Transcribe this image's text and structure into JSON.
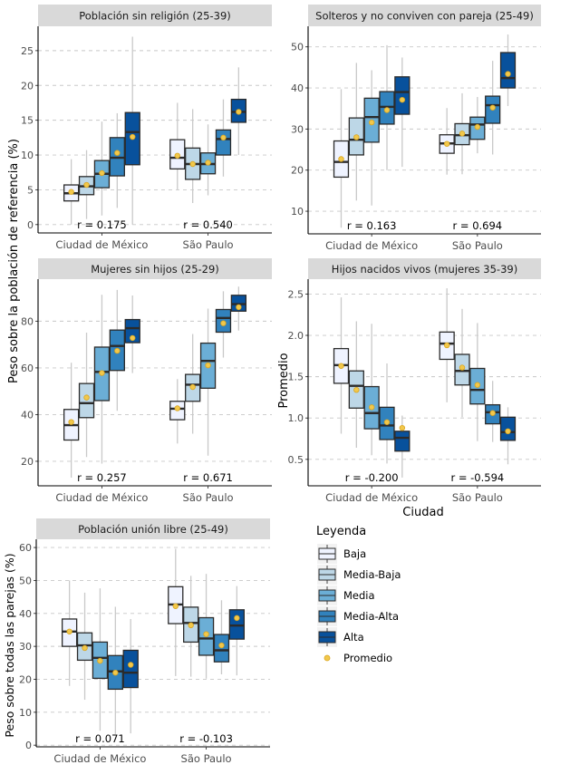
{
  "chart_data": {
    "type": "boxplot",
    "categories": [
      "Ciudad de México",
      "São Paulo"
    ],
    "groups": [
      "Baja",
      "Media-Baja",
      "Media",
      "Media-Alta",
      "Alta"
    ],
    "group_colors": [
      "#eff3ff",
      "#bdd7e7",
      "#6baed6",
      "#3182bd",
      "#08519c"
    ],
    "mean_color": "#f2c84b",
    "y_labels": {
      "left_top": "Peso sobre la población de referencia (%)",
      "right_middle": "Promedio",
      "left_bottom": "Peso sobre todas las parejas (%)"
    },
    "xlabel": "Ciudad",
    "legend": {
      "title": "Leyenda",
      "items": [
        "Baja",
        "Media-Baja",
        "Media",
        "Media-Alta",
        "Alta"
      ],
      "mean_label": "Promedio",
      "position": "bottom-right"
    },
    "panels": [
      {
        "title": "Población sin religión (25-39)",
        "ylim": [
          -1.2,
          28.5
        ],
        "yticks": [
          0,
          5,
          10,
          15,
          20,
          25
        ],
        "ytick_labels": [
          "0",
          "5",
          "10",
          "15",
          "20",
          "25"
        ],
        "r": [
          "r = 0.175",
          "r = 0.540"
        ],
        "boxes": [
          [
            {
              "min": 0.0,
              "q1": 3.4,
              "median": 4.5,
              "q3": 5.7,
              "max": 9.4,
              "mean": 4.7
            },
            {
              "min": 0.8,
              "q1": 4.3,
              "median": 5.5,
              "q3": 6.9,
              "max": 10.7,
              "mean": 5.7
            },
            {
              "min": 1.3,
              "q1": 5.3,
              "median": 7.3,
              "q3": 9.2,
              "max": 14.8,
              "mean": 7.4
            },
            {
              "min": 2.4,
              "q1": 7.0,
              "median": 9.6,
              "q3": 12.5,
              "max": 16.0,
              "mean": 10.3
            },
            {
              "min": 0.0,
              "q1": 8.6,
              "median": 13.3,
              "q3": 16.1,
              "max": 27.0,
              "mean": 12.6
            }
          ],
          [
            {
              "min": 5.0,
              "q1": 8.0,
              "median": 9.6,
              "q3": 12.2,
              "max": 17.5,
              "mean": 9.9
            },
            {
              "min": 3.1,
              "q1": 6.5,
              "median": 8.7,
              "q3": 11.0,
              "max": 16.6,
              "mean": 8.7
            },
            {
              "min": 4.2,
              "q1": 7.3,
              "median": 8.7,
              "q3": 10.3,
              "max": 14.4,
              "mean": 8.9
            },
            {
              "min": 6.9,
              "q1": 10.0,
              "median": 12.3,
              "q3": 13.6,
              "max": 18.0,
              "mean": 12.5
            },
            {
              "min": 10.0,
              "q1": 14.7,
              "median": 16.2,
              "q3": 18.0,
              "max": 22.6,
              "mean": 16.2
            }
          ]
        ]
      },
      {
        "title": "Solteros y no conviven con pareja (25-49)",
        "ylim": [
          4.5,
          55
        ],
        "yticks": [
          10,
          20,
          30,
          40,
          50
        ],
        "ytick_labels": [
          "10",
          "20",
          "30",
          "40",
          "50"
        ],
        "r": [
          "r = 0.163",
          "r = 0.694"
        ],
        "boxes": [
          [
            {
              "min": 6.0,
              "q1": 18.3,
              "median": 22.0,
              "q3": 27.1,
              "max": 39.7,
              "mean": 22.7
            },
            {
              "min": 12.6,
              "q1": 23.7,
              "median": 27.4,
              "q3": 32.7,
              "max": 46.1,
              "mean": 28.0
            },
            {
              "min": 11.4,
              "q1": 26.8,
              "median": 32.9,
              "q3": 37.5,
              "max": 44.3,
              "mean": 31.6
            },
            {
              "min": 20.0,
              "q1": 31.2,
              "median": 35.4,
              "q3": 39.1,
              "max": 50.4,
              "mean": 34.6
            },
            {
              "min": 20.8,
              "q1": 33.6,
              "median": 39.0,
              "q3": 42.7,
              "max": 47.4,
              "mean": 37.1
            }
          ],
          [
            {
              "min": 18.9,
              "q1": 24.1,
              "median": 26.5,
              "q3": 28.6,
              "max": 35.1,
              "mean": 26.4
            },
            {
              "min": 19.0,
              "q1": 26.2,
              "median": 28.5,
              "q3": 31.3,
              "max": 38.7,
              "mean": 28.9
            },
            {
              "min": 24.1,
              "q1": 27.5,
              "median": 31.1,
              "q3": 32.9,
              "max": 37.8,
              "mean": 30.5
            },
            {
              "min": 23.8,
              "q1": 31.4,
              "median": 35.8,
              "q3": 38.0,
              "max": 46.6,
              "mean": 35.2
            },
            {
              "min": 35.6,
              "q1": 40.0,
              "median": 42.4,
              "q3": 48.6,
              "max": 53.0,
              "mean": 43.4
            }
          ]
        ]
      },
      {
        "title": "Mujeres sin hijos (25-29)",
        "ylim": [
          9.5,
          98
        ],
        "yticks": [
          20,
          40,
          60,
          80
        ],
        "ytick_labels": [
          "20",
          "40",
          "60",
          "80"
        ],
        "r": [
          "r = 0.257",
          "r = 0.671"
        ],
        "boxes": [
          [
            {
              "min": 13.0,
              "q1": 29.1,
              "median": 35.5,
              "q3": 42.2,
              "max": 62.2,
              "mean": 36.8
            },
            {
              "min": 21.8,
              "q1": 38.7,
              "median": 44.9,
              "q3": 53.3,
              "max": 75.1,
              "mean": 47.3
            },
            {
              "min": 19.0,
              "q1": 46.0,
              "median": 58.3,
              "q3": 68.9,
              "max": 91.3,
              "mean": 57.8
            },
            {
              "min": 41.6,
              "q1": 58.9,
              "median": 69.4,
              "q3": 76.2,
              "max": 93.4,
              "mean": 67.3
            },
            {
              "min": 57.8,
              "q1": 70.8,
              "median": 77.0,
              "q3": 80.7,
              "max": 91.0,
              "mean": 72.8
            }
          ],
          [
            {
              "min": 27.6,
              "q1": 37.8,
              "median": 42.5,
              "q3": 45.7,
              "max": 55.2,
              "mean": 42.7
            },
            {
              "min": 31.8,
              "q1": 45.7,
              "median": 52.8,
              "q3": 57.2,
              "max": 74.5,
              "mean": 51.8
            },
            {
              "min": 22.4,
              "q1": 51.3,
              "median": 63.0,
              "q3": 70.6,
              "max": 85.4,
              "mean": 61.1
            },
            {
              "min": 64.4,
              "q1": 75.3,
              "median": 81.4,
              "q3": 85.0,
              "max": 92.8,
              "mean": 79.1
            },
            {
              "min": 76.0,
              "q1": 84.3,
              "median": 87.3,
              "q3": 91.1,
              "max": 94.8,
              "mean": 86.0
            }
          ]
        ]
      },
      {
        "title": "Hijos nacidos vivos (mujeres 35-39)",
        "ylim": [
          0.18,
          2.68
        ],
        "yticks": [
          0.5,
          1.0,
          1.5,
          2.0,
          2.5
        ],
        "ytick_labels": [
          "0.5",
          "1.0",
          "1.5",
          "2.0",
          "2.5"
        ],
        "r": [
          "r = -0.200",
          "r = -0.594"
        ],
        "boxes": [
          [
            {
              "min": 0.81,
              "q1": 1.42,
              "median": 1.64,
              "q3": 1.84,
              "max": 2.46,
              "mean": 1.63
            },
            {
              "min": 0.64,
              "q1": 1.12,
              "median": 1.39,
              "q3": 1.57,
              "max": 2.17,
              "mean": 1.34
            },
            {
              "min": 0.55,
              "q1": 0.87,
              "median": 1.06,
              "q3": 1.38,
              "max": 2.14,
              "mean": 1.13
            },
            {
              "min": 0.45,
              "q1": 0.74,
              "median": 0.91,
              "q3": 1.13,
              "max": 1.66,
              "mean": 0.95
            },
            {
              "min": 0.28,
              "q1": 0.6,
              "median": 0.76,
              "q3": 0.84,
              "max": 1.03,
              "mean": 0.88
            }
          ],
          [
            {
              "min": 1.19,
              "q1": 1.71,
              "median": 1.9,
              "q3": 2.04,
              "max": 2.57,
              "mean": 1.88
            },
            {
              "min": 1.01,
              "q1": 1.4,
              "median": 1.57,
              "q3": 1.77,
              "max": 2.32,
              "mean": 1.61
            },
            {
              "min": 0.72,
              "q1": 1.17,
              "median": 1.34,
              "q3": 1.6,
              "max": 2.15,
              "mean": 1.4
            },
            {
              "min": 0.71,
              "q1": 0.93,
              "median": 1.07,
              "q3": 1.16,
              "max": 1.45,
              "mean": 1.06
            },
            {
              "min": 0.44,
              "q1": 0.73,
              "median": 0.83,
              "q3": 1.01,
              "max": 1.13,
              "mean": 0.84
            }
          ]
        ]
      },
      {
        "title": "Población unión libre (25-49)",
        "ylim": [
          -0.5,
          62.5
        ],
        "yticks": [
          0,
          10,
          20,
          30,
          40,
          50,
          60
        ],
        "ytick_labels": [
          "0",
          "10",
          "20",
          "30",
          "40",
          "50",
          "60"
        ],
        "r": [
          "r = 0.071",
          "r = -0.103"
        ],
        "boxes": [
          [
            {
              "min": 18.0,
              "q1": 30.0,
              "median": 34.5,
              "q3": 38.3,
              "max": 50.0,
              "mean": 34.5
            },
            {
              "min": 13.8,
              "q1": 25.8,
              "median": 30.3,
              "q3": 34.1,
              "max": 46.3,
              "mean": 29.5
            },
            {
              "min": 4.4,
              "q1": 20.3,
              "median": 26.5,
              "q3": 31.3,
              "max": 47.6,
              "mean": 25.6
            },
            {
              "min": 3.4,
              "q1": 17.0,
              "median": 22.4,
              "q3": 27.2,
              "max": 42.0,
              "mean": 22.0
            },
            {
              "min": 3.6,
              "q1": 17.5,
              "median": 22.0,
              "q3": 28.8,
              "max": 38.3,
              "mean": 24.4
            }
          ],
          [
            {
              "min": 21.0,
              "q1": 36.9,
              "median": 42.7,
              "q3": 48.1,
              "max": 59.6,
              "mean": 42.2
            },
            {
              "min": 20.8,
              "q1": 31.3,
              "median": 37.1,
              "q3": 41.9,
              "max": 51.4,
              "mean": 36.4
            },
            {
              "min": 20.2,
              "q1": 27.3,
              "median": 32.4,
              "q3": 38.7,
              "max": 52.0,
              "mean": 33.7
            },
            {
              "min": 21.5,
              "q1": 25.3,
              "median": 28.8,
              "q3": 33.6,
              "max": 44.0,
              "mean": 30.3
            },
            {
              "min": 21.2,
              "q1": 32.2,
              "median": 36.3,
              "q3": 41.1,
              "max": 48.3,
              "mean": 38.6
            }
          ]
        ]
      }
    ]
  }
}
